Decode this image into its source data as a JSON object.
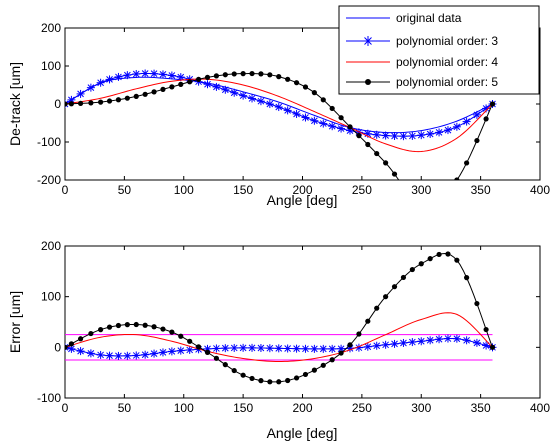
{
  "chart_data": [
    {
      "type": "line",
      "xlabel": "Angle [deg]",
      "ylabel": "De-track [um]",
      "xlim": [
        0,
        400
      ],
      "ylim": [
        -200,
        200
      ],
      "xticks": [
        0,
        50,
        100,
        150,
        200,
        250,
        300,
        350,
        400
      ],
      "yticks": [
        -200,
        -100,
        0,
        100,
        200
      ],
      "grid": false,
      "legend_position": "top-right",
      "legend": [
        "original data",
        "polynomial order: 3",
        "polynomial order: 4",
        "polynomial order: 5"
      ],
      "series": [
        {
          "name": "original data",
          "color": "#0000ff",
          "marker": "none",
          "x": [
            0,
            30,
            60,
            90,
            120,
            150,
            180,
            210,
            240,
            270,
            300,
            330,
            360
          ],
          "y": [
            0,
            55,
            70,
            66,
            55,
            32,
            5,
            -30,
            -62,
            -75,
            -70,
            -45,
            0
          ]
        },
        {
          "name": "polynomial order: 3",
          "color": "#0000ff",
          "marker": "asterisk",
          "x": [
            0,
            30,
            60,
            90,
            120,
            150,
            180,
            210,
            240,
            270,
            300,
            330,
            360
          ],
          "y": [
            0,
            56,
            79,
            75,
            52,
            22,
            -8,
            -44,
            -70,
            -83,
            -82,
            -60,
            0
          ]
        },
        {
          "name": "polynomial order: 4",
          "color": "#ff0000",
          "marker": "none",
          "x": [
            0,
            30,
            60,
            90,
            120,
            150,
            180,
            210,
            240,
            270,
            300,
            330,
            360
          ],
          "y": [
            0,
            15,
            40,
            60,
            65,
            50,
            20,
            -20,
            -62,
            -105,
            -125,
            -90,
            0
          ]
        },
        {
          "name": "polynomial order: 5",
          "color": "#000000",
          "marker": "dot",
          "x": [
            0,
            30,
            60,
            90,
            120,
            150,
            180,
            210,
            240,
            270,
            300,
            330,
            360
          ],
          "y": [
            0,
            5,
            20,
            45,
            70,
            80,
            72,
            30,
            -60,
            -155,
            -260,
            -200,
            0
          ]
        }
      ]
    },
    {
      "type": "line",
      "xlabel": "Angle [deg]",
      "ylabel": "Error [um]",
      "xlim": [
        0,
        400
      ],
      "ylim": [
        -100,
        200
      ],
      "xticks": [
        0,
        50,
        100,
        150,
        200,
        250,
        300,
        350,
        400
      ],
      "yticks": [
        -100,
        0,
        100,
        200
      ],
      "grid": false,
      "reference_lines": [
        {
          "y": 25,
          "color": "#ff00ff",
          "x": [
            0,
            360
          ]
        },
        {
          "y": -25,
          "color": "#ff00ff",
          "x": [
            0,
            360
          ]
        }
      ],
      "series": [
        {
          "color": "#0000ff",
          "marker": "asterisk",
          "x": [
            0,
            30,
            60,
            90,
            120,
            150,
            180,
            210,
            240,
            270,
            300,
            330,
            360
          ],
          "y": [
            0,
            -15,
            -16,
            -8,
            -3,
            -1,
            -2,
            -3,
            -2,
            5,
            12,
            17,
            0
          ]
        },
        {
          "color": "#ff0000",
          "marker": "none",
          "x": [
            0,
            30,
            60,
            90,
            120,
            150,
            180,
            210,
            240,
            270,
            300,
            330,
            360
          ],
          "y": [
            0,
            20,
            25,
            12,
            -8,
            -22,
            -28,
            -22,
            -5,
            25,
            55,
            65,
            0
          ]
        },
        {
          "color": "#000000",
          "marker": "dot",
          "x": [
            0,
            30,
            60,
            90,
            120,
            150,
            180,
            210,
            240,
            270,
            300,
            330,
            360
          ],
          "y": [
            0,
            35,
            45,
            30,
            -10,
            -55,
            -68,
            -45,
            5,
            100,
            165,
            172,
            0
          ]
        }
      ]
    }
  ]
}
